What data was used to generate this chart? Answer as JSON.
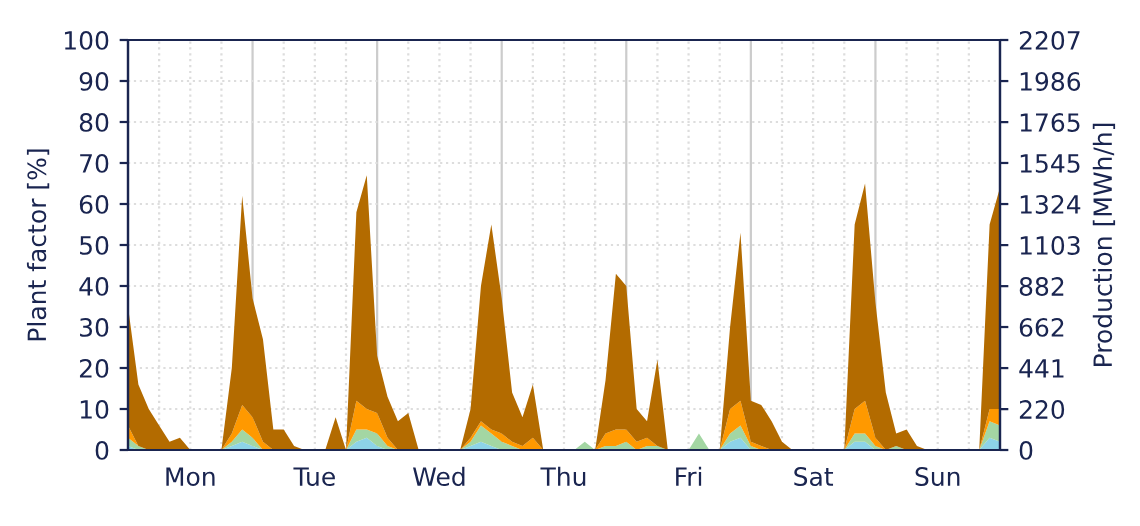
{
  "chart_data": {
    "type": "area",
    "stacked": true,
    "ylabel": "Plant factor [%]",
    "y2label": "Production [MWh/h]",
    "categories": [
      null,
      null,
      null,
      null,
      null,
      null,
      "Mon",
      null,
      null,
      null,
      null,
      null,
      null,
      null,
      null,
      null,
      null,
      null,
      "Tue",
      null,
      null,
      null,
      null,
      null,
      null,
      null,
      null,
      null,
      null,
      null,
      "Wed",
      null,
      null,
      null,
      null,
      null,
      null,
      null,
      null,
      null,
      null,
      null,
      "Thu",
      null,
      null,
      null,
      null,
      null,
      null,
      null,
      null,
      null,
      null,
      null,
      "Fri",
      null,
      null,
      null,
      null,
      null,
      null,
      null,
      null,
      null,
      null,
      null,
      "Sat",
      null,
      null,
      null,
      null,
      null,
      null,
      null,
      null,
      null,
      null,
      null,
      "Sun",
      null,
      null,
      null,
      null,
      null,
      null
    ],
    "series": [
      {
        "color": "#8dd3e8",
        "values": [
          1,
          0,
          0,
          0,
          0,
          0,
          0,
          0,
          0,
          0,
          1,
          2,
          1,
          0,
          0,
          0,
          0,
          0,
          0,
          0,
          0,
          0,
          2,
          3,
          1,
          0,
          0,
          0,
          0,
          0,
          0,
          0,
          0,
          1,
          2,
          1,
          0,
          0,
          0,
          0,
          0,
          0,
          0,
          0,
          0,
          0,
          0,
          0,
          0,
          0,
          0,
          0,
          0,
          0,
          0,
          0,
          0,
          0,
          2,
          3,
          0,
          0,
          0,
          0,
          0,
          0,
          0,
          0,
          0,
          0,
          2,
          2,
          0,
          0,
          0,
          0,
          0,
          0,
          0,
          0,
          0,
          0,
          0,
          3,
          2
        ]
      },
      {
        "color": "#a3d6a3",
        "values": [
          2,
          1,
          0,
          0,
          0,
          0,
          0,
          0,
          0,
          0,
          1,
          3,
          2,
          0,
          0,
          0,
          0,
          0,
          0,
          0,
          0,
          0,
          3,
          2,
          3,
          1,
          0,
          0,
          0,
          0,
          0,
          0,
          0,
          1,
          4,
          3,
          2,
          1,
          0,
          0,
          0,
          0,
          0,
          0,
          2,
          0,
          1,
          1,
          2,
          0,
          1,
          1,
          0,
          0,
          0,
          4,
          0,
          0,
          2,
          3,
          1,
          0,
          0,
          0,
          0,
          0,
          0,
          0,
          0,
          0,
          2,
          2,
          1,
          0,
          1,
          0,
          0,
          0,
          0,
          0,
          0,
          0,
          0,
          4,
          4
        ]
      },
      {
        "color": "#ff9900",
        "values": [
          3,
          0,
          0,
          0,
          0,
          0,
          0,
          0,
          0,
          0,
          2,
          6,
          5,
          2,
          0,
          0,
          0,
          0,
          0,
          0,
          0,
          0,
          7,
          5,
          5,
          2,
          0,
          0,
          0,
          0,
          0,
          0,
          0,
          1,
          1,
          1,
          2,
          1,
          1,
          3,
          0,
          0,
          0,
          0,
          0,
          0,
          3,
          4,
          3,
          2,
          2,
          0,
          0,
          0,
          0,
          0,
          0,
          0,
          6,
          6,
          1,
          1,
          0,
          0,
          0,
          0,
          0,
          0,
          0,
          0,
          6,
          8,
          2,
          0,
          0,
          0,
          0,
          0,
          0,
          0,
          0,
          0,
          0,
          3,
          4
        ]
      },
      {
        "color": "#b36b00",
        "values": [
          29,
          15,
          10,
          6,
          2,
          3,
          0,
          0,
          0,
          0,
          16,
          51,
          29,
          25,
          5,
          5,
          1,
          0,
          0,
          0,
          8,
          0,
          46,
          57,
          14,
          10,
          7,
          9,
          0,
          0,
          0,
          0,
          0,
          7,
          33,
          50,
          33,
          12,
          7,
          13,
          0,
          0,
          0,
          0,
          0,
          0,
          13,
          38,
          35,
          8,
          4,
          21,
          0,
          0,
          0,
          0,
          0,
          0,
          20,
          41,
          10,
          10,
          7,
          2,
          0,
          0,
          0,
          0,
          0,
          0,
          45,
          53,
          33,
          14,
          3,
          5,
          1,
          0,
          0,
          0,
          0,
          0,
          0,
          45,
          54
        ]
      }
    ],
    "ylim": [
      0,
      100
    ],
    "yticks": [
      0,
      10,
      20,
      30,
      40,
      50,
      60,
      70,
      80,
      90,
      100
    ],
    "y2lim": [
      0,
      2207
    ],
    "y2ticks": [
      0,
      220,
      441,
      662,
      882,
      1103,
      1324,
      1545,
      1765,
      1986,
      2207
    ],
    "grid": true
  }
}
